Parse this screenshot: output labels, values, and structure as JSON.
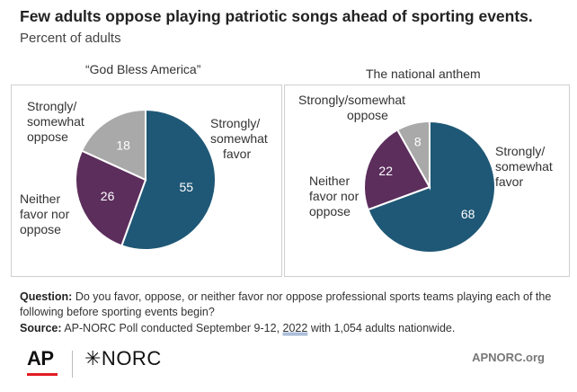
{
  "title": "Few adults oppose playing patriotic songs ahead of sporting events.",
  "subtitle": "Percent of adults",
  "chart_data": [
    {
      "type": "pie",
      "title": "“God Bless America”",
      "slices": [
        {
          "label": "Strongly/ somewhat favor",
          "value": 55,
          "color": "#1f5876"
        },
        {
          "label": "Neither favor nor oppose",
          "value": 26,
          "color": "#5c2e5c"
        },
        {
          "label": "Strongly/ somewhat oppose",
          "value": 18,
          "color": "#a9a9a9"
        }
      ]
    },
    {
      "type": "pie",
      "title": "The national anthem",
      "slices": [
        {
          "label": "Strongly/ somewhat favor",
          "value": 68,
          "color": "#1f5876"
        },
        {
          "label": "Neither favor nor oppose",
          "value": 22,
          "color": "#5c2e5c"
        },
        {
          "label": "Strongly/somewhat oppose",
          "value": 8,
          "color": "#a9a9a9"
        }
      ]
    }
  ],
  "labels": {
    "pie1_favor": [
      "Strongly/",
      "somewhat",
      "favor"
    ],
    "pie1_neither": [
      "Neither",
      "favor nor",
      "oppose"
    ],
    "pie1_oppose": [
      "Strongly/",
      "somewhat",
      "oppose"
    ],
    "pie2_favor": [
      "Strongly/",
      "somewhat",
      "favor"
    ],
    "pie2_neither": [
      "Neither",
      "favor nor",
      "oppose"
    ],
    "pie2_oppose": [
      "Strongly/somewhat",
      "oppose"
    ]
  },
  "footer": {
    "question_label": "Question:",
    "question_text": "Do you favor, oppose, or neither favor nor oppose professional sports teams playing each of the following before sporting events begin?",
    "source_label": "Source:",
    "source_text_before": "AP-NORC Poll conducted September 9-12,",
    "source_date": "2022",
    "source_text_after": "with 1,054 adults nationwide."
  },
  "logos": {
    "ap": "AP",
    "norc": "✳NORC"
  },
  "url": "APNORC.org"
}
